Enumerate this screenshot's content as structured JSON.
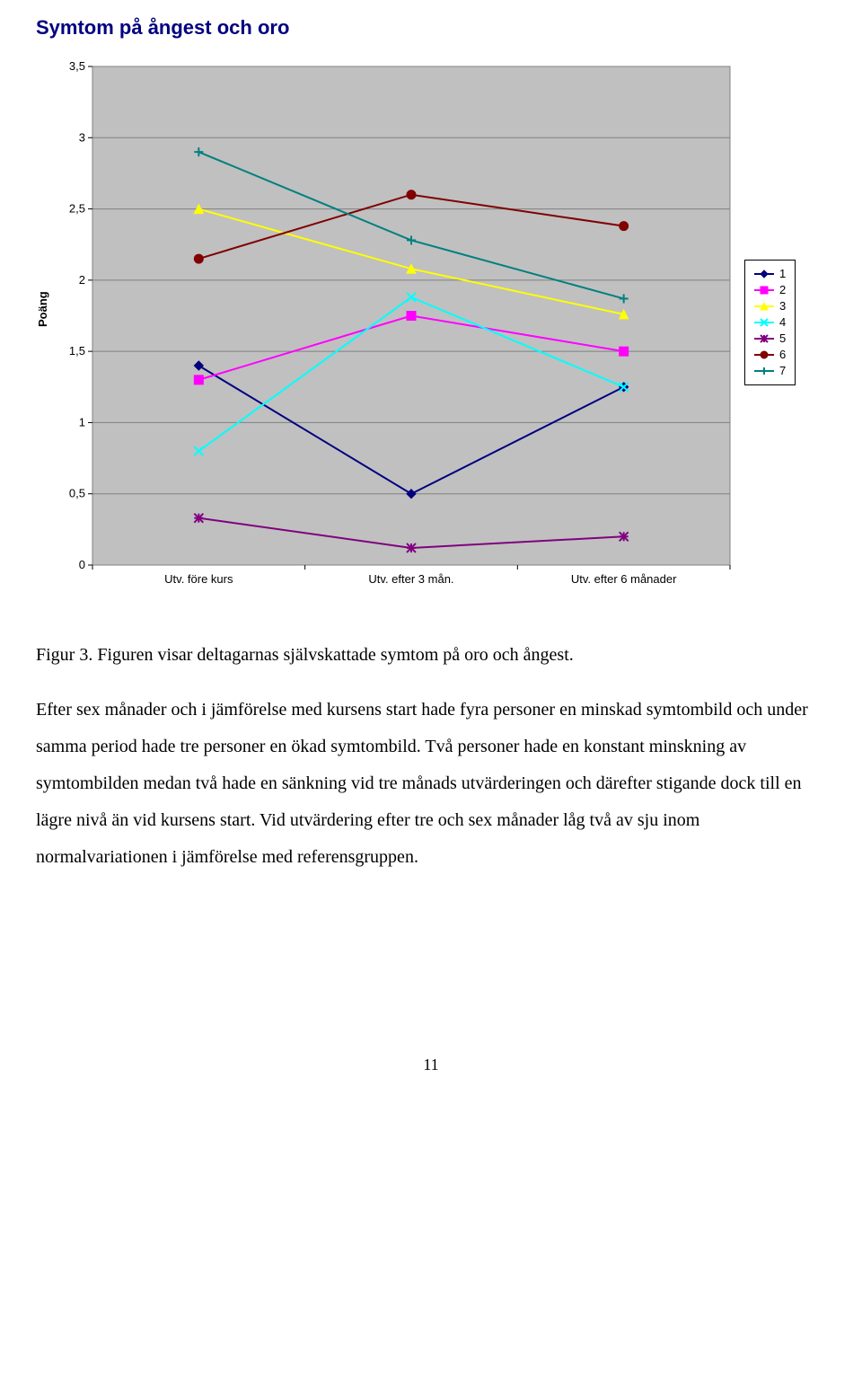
{
  "chart": {
    "title": "Symtom på ångest och oro",
    "type": "line",
    "ylabel": "Poäng",
    "categories": [
      "Utv. före kurs",
      "Utv. efter 3 mån.",
      "Utv. efter 6 månader"
    ],
    "ylim": [
      0,
      3.5
    ],
    "ytick_step": 0.5,
    "ytick_labels": [
      "0",
      "0,5",
      "1",
      "1,5",
      "2",
      "2,5",
      "3",
      "3,5"
    ],
    "plot_bg": "#c0c0c0",
    "grid_color": "#808080",
    "axis_color": "#808080",
    "series": [
      {
        "name": "1",
        "color": "#000080",
        "marker": "diamond",
        "values": [
          1.4,
          0.5,
          1.25
        ]
      },
      {
        "name": "2",
        "color": "#ff00ff",
        "marker": "square",
        "values": [
          1.3,
          1.75,
          1.5
        ]
      },
      {
        "name": "3",
        "color": "#ffff00",
        "marker": "triangle",
        "values": [
          2.5,
          2.08,
          1.76
        ]
      },
      {
        "name": "4",
        "color": "#00ffff",
        "marker": "xmark",
        "values": [
          0.8,
          1.88,
          1.25
        ]
      },
      {
        "name": "5",
        "color": "#800080",
        "marker": "asterisk",
        "values": [
          0.33,
          0.12,
          0.2
        ]
      },
      {
        "name": "6",
        "color": "#800000",
        "marker": "circle",
        "values": [
          2.15,
          2.6,
          2.38
        ]
      },
      {
        "name": "7",
        "color": "#008080",
        "marker": "plus",
        "values": [
          2.9,
          2.28,
          1.87
        ]
      }
    ]
  },
  "caption": "Figur 3. Figuren visar deltagarnas självskattade symtom på oro och ångest.",
  "body": "Efter sex månader och i jämförelse med kursens start hade fyra personer en minskad symtombild och under samma period hade tre personer en ökad symtombild. Två personer hade en konstant minskning av symtombilden medan två hade en sänkning vid tre månads utvärderingen och därefter stigande dock till en lägre nivå än vid kursens start. Vid utvärdering efter tre och sex månader låg två av sju inom normalvariationen i jämförelse med referensgruppen.",
  "page_number": "11"
}
